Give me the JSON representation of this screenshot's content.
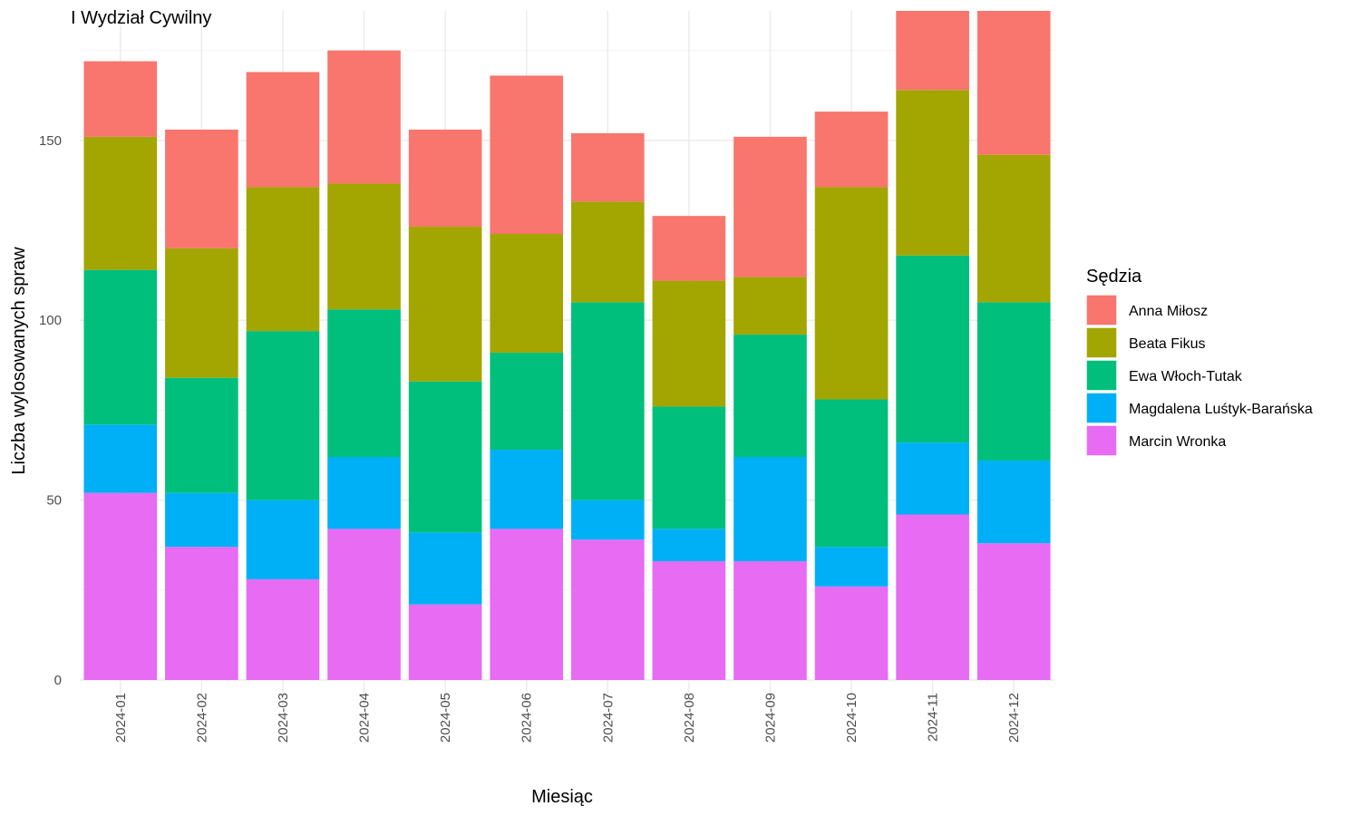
{
  "chart_data": {
    "type": "bar",
    "stacked": true,
    "title": "I Wydział Cywilny",
    "xlabel": "Miesiąc",
    "ylabel": "Liczba wylosowanych spraw",
    "ylim": [
      0,
      186
    ],
    "yticks": [
      0,
      50,
      100,
      150
    ],
    "grid": true,
    "legend_position": "right",
    "legend_title": "Sędzia",
    "categories": [
      "2024-01",
      "2024-02",
      "2024-03",
      "2024-04",
      "2024-05",
      "2024-06",
      "2024-07",
      "2024-08",
      "2024-09",
      "2024-10",
      "2024-11",
      "2024-12"
    ],
    "series": [
      {
        "name": "Marcin Wronka",
        "color": "#E76BF3",
        "values": [
          52,
          37,
          28,
          42,
          21,
          42,
          39,
          33,
          33,
          26,
          46,
          38
        ]
      },
      {
        "name": "Magdalena Luśtyk-Barańska",
        "color": "#00B0F6",
        "values": [
          19,
          15,
          22,
          20,
          20,
          22,
          11,
          9,
          29,
          11,
          20,
          23
        ]
      },
      {
        "name": "Ewa Włoch-Tutak",
        "color": "#00BF7D",
        "values": [
          43,
          32,
          47,
          41,
          42,
          27,
          55,
          34,
          34,
          41,
          52,
          44
        ]
      },
      {
        "name": "Beata Fikus",
        "color": "#A3A500",
        "values": [
          37,
          36,
          40,
          35,
          43,
          33,
          28,
          35,
          16,
          59,
          46,
          41
        ]
      },
      {
        "name": "Anna Miłosz",
        "color": "#F8766D",
        "values": [
          21,
          33,
          32,
          37,
          27,
          44,
          19,
          18,
          39,
          21,
          22,
          40
        ]
      }
    ],
    "legend_order": [
      "Anna Miłosz",
      "Beata Fikus",
      "Ewa Włoch-Tutak",
      "Magdalena Luśtyk-Barańska",
      "Marcin Wronka"
    ]
  }
}
